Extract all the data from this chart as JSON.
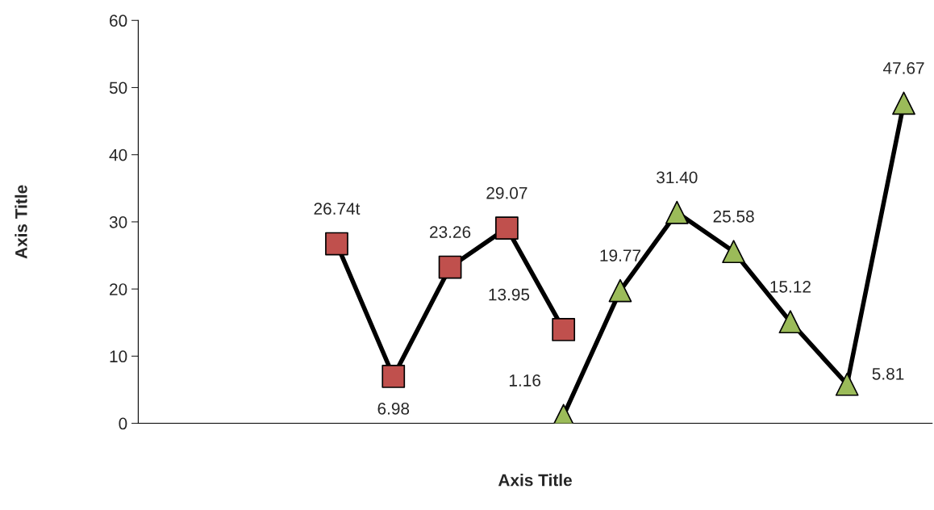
{
  "chart_data": {
    "type": "line",
    "xlabel": "Axis Title",
    "ylabel": "Axis Title",
    "categories": [
      null,
      null,
      null,
      null,
      null,
      null,
      null,
      null,
      null,
      null,
      null,
      null,
      null,
      null
    ],
    "series": [
      {
        "color": "#c0504d",
        "marker": "square",
        "values": [
          null,
          null,
          null,
          26.74,
          6.98,
          23.26,
          29.07,
          13.95,
          null,
          null,
          null,
          null,
          null,
          null
        ],
        "value_labels": [
          null,
          null,
          null,
          "26.74t",
          "6.98",
          "23.26",
          "29.07",
          "13.95",
          null,
          null,
          null,
          null,
          null,
          null
        ]
      },
      {
        "color": "#9bbb59",
        "marker": "triangle",
        "values": [
          null,
          null,
          null,
          null,
          null,
          null,
          null,
          1.16,
          19.77,
          31.4,
          25.58,
          15.12,
          5.81,
          47.67
        ],
        "value_labels": [
          null,
          null,
          null,
          null,
          null,
          null,
          null,
          "1.16",
          "19.77",
          "31.40",
          "25.58",
          "15.12",
          "5.81",
          "47.67"
        ]
      }
    ],
    "ylim": [
      0,
      60
    ],
    "yticks": [
      0,
      10,
      20,
      30,
      40,
      50,
      60
    ],
    "grid": false,
    "legend": false
  }
}
